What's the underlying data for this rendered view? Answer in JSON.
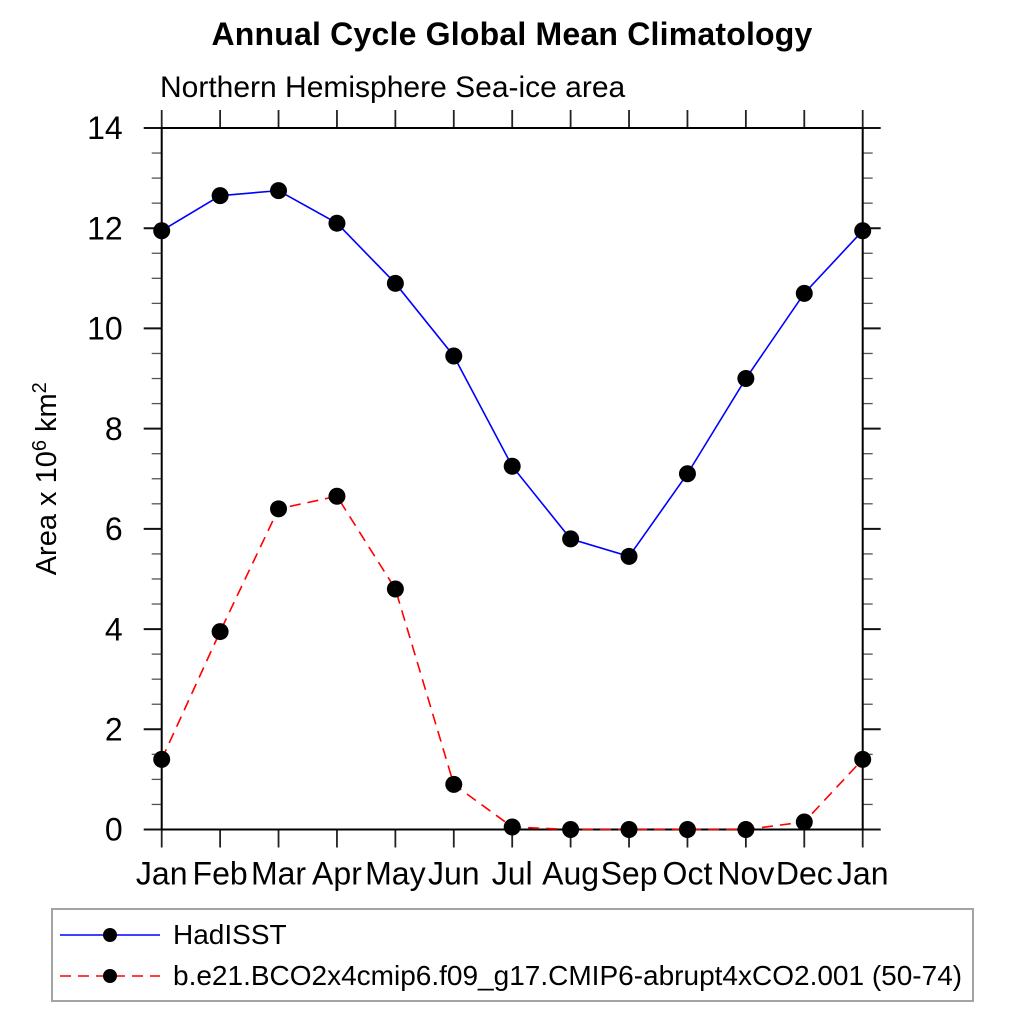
{
  "title": "Annual Cycle Global Mean Climatology",
  "subtitle": "Northern Hemisphere Sea-ice area",
  "chart_data": {
    "type": "line",
    "title": "Annual Cycle Global Mean Climatology",
    "subtitle": "Northern Hemisphere Sea-ice area",
    "categories": [
      "Jan",
      "Feb",
      "Mar",
      "Apr",
      "May",
      "Jun",
      "Jul",
      "Aug",
      "Sep",
      "Oct",
      "Nov",
      "Dec",
      "Jan"
    ],
    "xlabel": "",
    "ylabel": "Area x 10^6 km^2",
    "ylabel_parts": [
      {
        "text": "Area x 10",
        "sup": false
      },
      {
        "text": "6",
        "sup": true
      },
      {
        "text": " km",
        "sup": false
      },
      {
        "text": "2",
        "sup": true
      }
    ],
    "ylim": [
      0,
      14
    ],
    "y_major_ticks": [
      0,
      2,
      4,
      6,
      8,
      10,
      12,
      14
    ],
    "y_minor_step": 0.5,
    "grid": false,
    "legend_position": "bottom-left-box",
    "axis_color": "#000000",
    "marker_color": "#000000",
    "series": [
      {
        "name": "HadISST",
        "color": "#0000ff",
        "line_style": "solid",
        "marker": "filled-circle",
        "values": [
          11.95,
          12.65,
          12.75,
          12.1,
          10.9,
          9.45,
          7.25,
          5.8,
          5.45,
          7.1,
          9.0,
          10.7,
          11.95
        ]
      },
      {
        "name": "b.e21.BCO2x4cmip6.f09_g17.CMIP6-abrupt4xCO2.001 (50-74)",
        "color": "#ff0000",
        "line_style": "dashed",
        "marker": "filled-circle",
        "values": [
          1.4,
          3.95,
          6.4,
          6.65,
          4.8,
          0.9,
          0.05,
          0.0,
          0.0,
          0.0,
          0.0,
          0.15,
          1.4
        ]
      }
    ]
  }
}
